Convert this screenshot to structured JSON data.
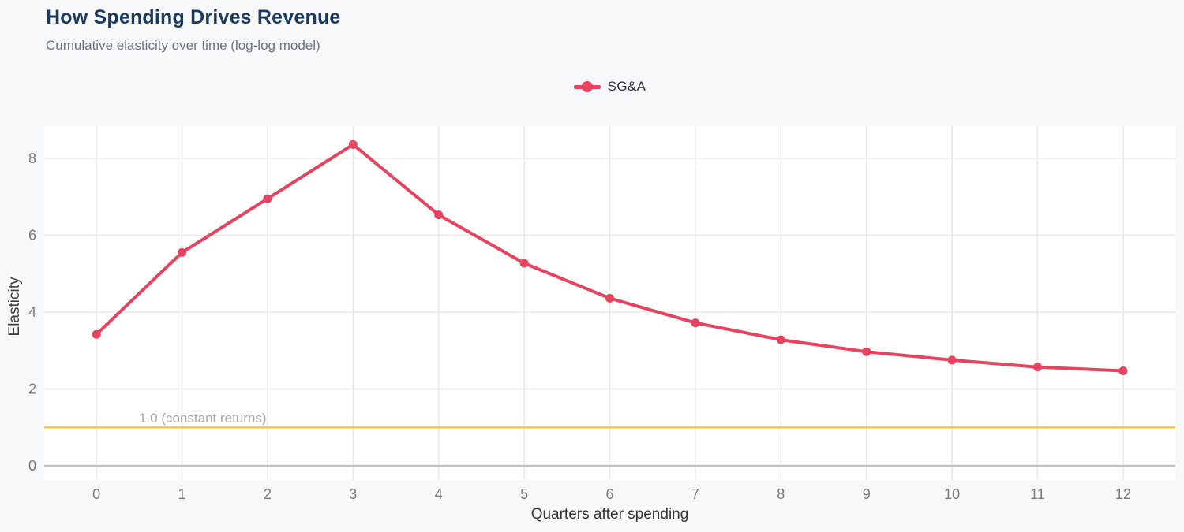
{
  "header": {
    "title": "How Spending Drives Revenue",
    "subtitle": "Cumulative elasticity over time (log-log model)"
  },
  "chart_data": {
    "type": "line",
    "title": "How Spending Drives Revenue",
    "subtitle": "Cumulative elasticity over time (log-log model)",
    "xlabel": "Quarters after spending",
    "ylabel": "Elasticity",
    "x": [
      0,
      1,
      2,
      3,
      4,
      5,
      6,
      7,
      8,
      9,
      10,
      11,
      12
    ],
    "series": [
      {
        "name": "SG&A",
        "color": "#e8425f",
        "values": [
          3.42,
          5.55,
          6.95,
          8.36,
          6.53,
          5.27,
          4.36,
          3.72,
          3.28,
          2.97,
          2.75,
          2.57,
          2.47
        ]
      }
    ],
    "x_ticks": [
      0,
      1,
      2,
      3,
      4,
      5,
      6,
      7,
      8,
      9,
      10,
      11,
      12
    ],
    "y_ticks": [
      0,
      2,
      4,
      6,
      8
    ],
    "xlim": [
      -0.61,
      12.61
    ],
    "ylim": [
      -0.37,
      8.84
    ],
    "grid": true,
    "legend_position": "top-center",
    "reference_line": {
      "value": 1.0,
      "label": "1.0 (constant returns)",
      "color": "#fbc34f"
    },
    "styles": {
      "plot_bg": "#ffffff",
      "page_bg": "#f6f8fa",
      "grid_color": "#e7e7e7",
      "zero_line_color": "#c2c2c2",
      "tick_label_color": "#7b7b7b",
      "line_width": 4,
      "marker_radius": 5.5
    }
  }
}
